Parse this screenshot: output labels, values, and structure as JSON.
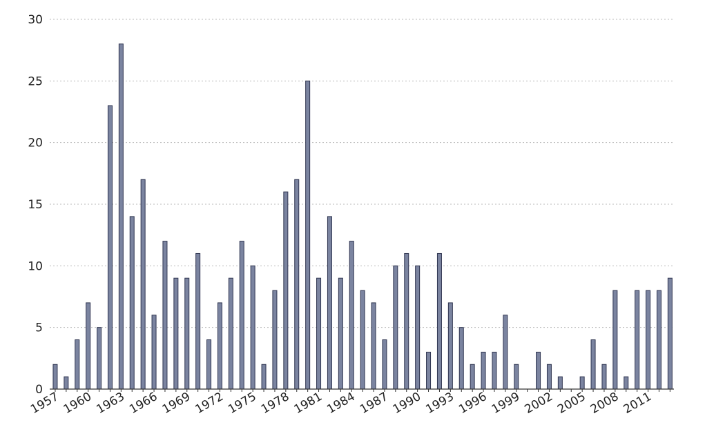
{
  "chart_data": {
    "type": "bar",
    "title": "",
    "xlabel": "",
    "ylabel": "",
    "ylim": [
      0,
      30
    ],
    "yticks": [
      0,
      5,
      10,
      15,
      20,
      25,
      30
    ],
    "grid": true,
    "bar_color": "#7b84a0",
    "bar_edge_color": "#2f3550",
    "categories": [
      "1957",
      "1958",
      "1959",
      "1960",
      "1961",
      "1962",
      "1963",
      "1964",
      "1965",
      "1966",
      "1967",
      "1968",
      "1969",
      "1970",
      "1971",
      "1972",
      "1973",
      "1974",
      "1975",
      "1976",
      "1977",
      "1978",
      "1979",
      "1980",
      "1981",
      "1982",
      "1983",
      "1984",
      "1985",
      "1986",
      "1987",
      "1988",
      "1989",
      "1990",
      "1991",
      "1992",
      "1993",
      "1994",
      "1995",
      "1996",
      "1997",
      "1998",
      "1999",
      "2000",
      "2001",
      "2002",
      "2003",
      "2004",
      "2005",
      "2006",
      "2007",
      "2008",
      "2009",
      "2010",
      "2011",
      "2012",
      "2013"
    ],
    "values": [
      2,
      1,
      4,
      7,
      5,
      23,
      28,
      14,
      17,
      6,
      12,
      9,
      9,
      11,
      4,
      7,
      9,
      12,
      10,
      2,
      8,
      16,
      17,
      25,
      9,
      14,
      9,
      12,
      8,
      7,
      4,
      10,
      11,
      10,
      3,
      11,
      7,
      5,
      2,
      3,
      3,
      6,
      2,
      0,
      3,
      2,
      1,
      0,
      1,
      4,
      2,
      8,
      1,
      8,
      8,
      8,
      9
    ],
    "x_tick_labels": [
      "1957",
      "1960",
      "1963",
      "1966",
      "1969",
      "1972",
      "1975",
      "1978",
      "1981",
      "1984",
      "1987",
      "1990",
      "1993",
      "1996",
      "1999",
      "2002",
      "2005",
      "2008",
      "2011"
    ]
  }
}
